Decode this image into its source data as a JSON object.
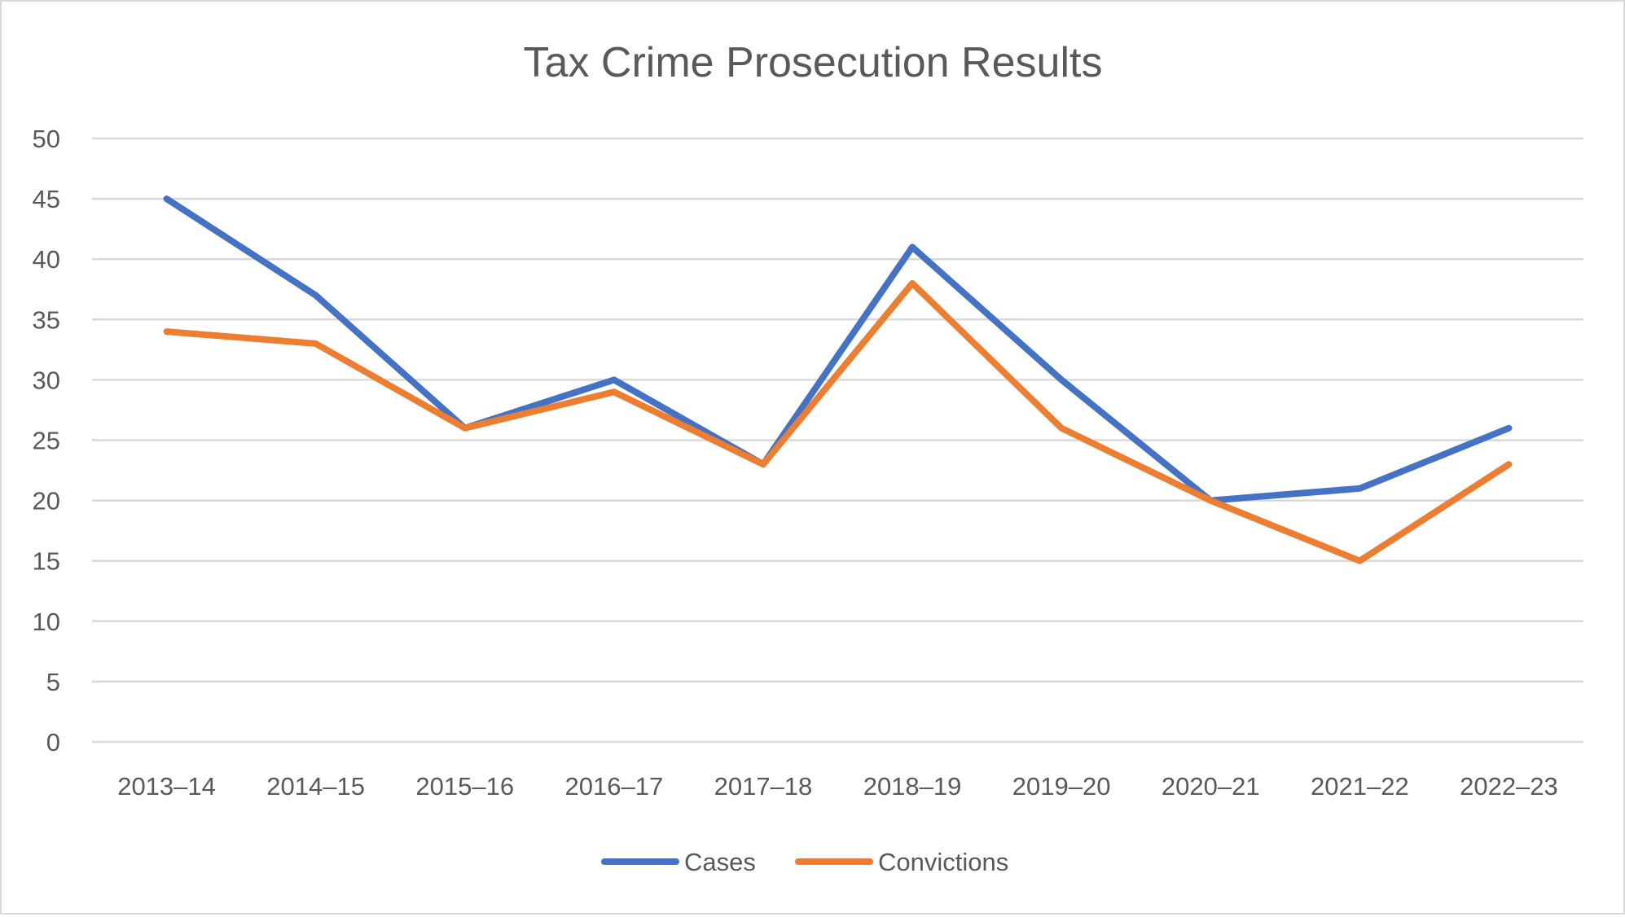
{
  "chart_data": {
    "type": "line",
    "title": "Tax Crime Prosecution Results",
    "xlabel": "",
    "ylabel": "",
    "categories": [
      "2013–14",
      "2014–15",
      "2015–16",
      "2016–17",
      "2017–18",
      "2018–19",
      "2019–20",
      "2020–21",
      "2021–22",
      "2022–23"
    ],
    "yticks": [
      "0",
      "5",
      "10",
      "15",
      "20",
      "25",
      "30",
      "35",
      "40",
      "45",
      "50"
    ],
    "ylim": [
      0,
      50
    ],
    "grid": true,
    "legend_position": "bottom",
    "series": [
      {
        "name": "Cases",
        "color": "#4472C4",
        "values": [
          45,
          37,
          26,
          30,
          23,
          41,
          30,
          20,
          21,
          26
        ]
      },
      {
        "name": "Convictions",
        "color": "#ED7D31",
        "values": [
          34,
          33,
          26,
          29,
          23,
          38,
          26,
          20,
          15,
          23
        ]
      }
    ]
  }
}
